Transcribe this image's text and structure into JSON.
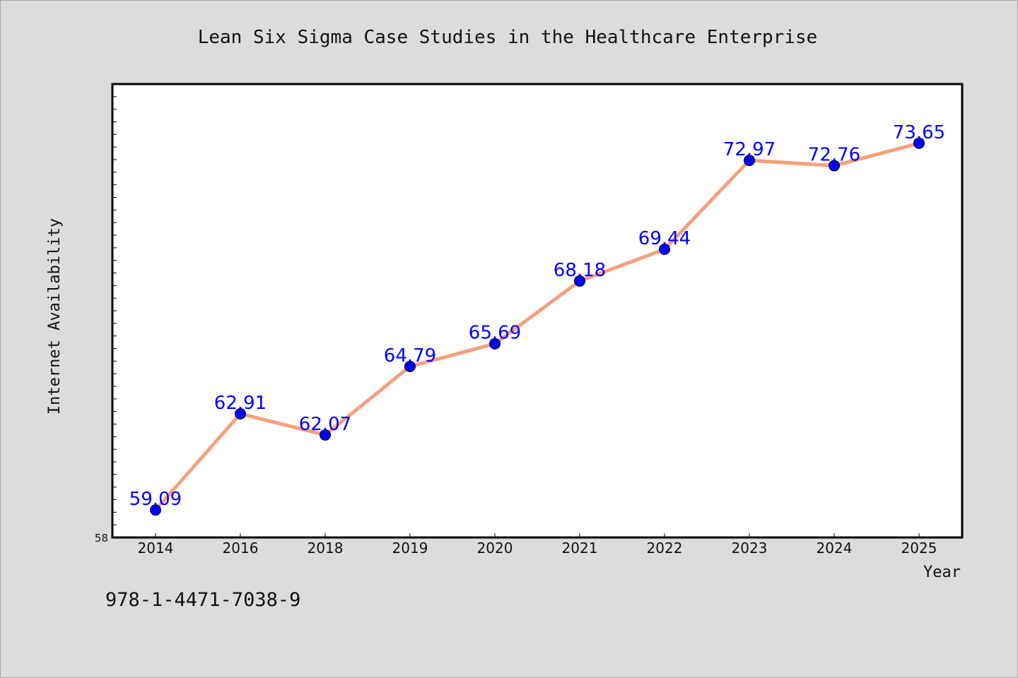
{
  "chart_data": {
    "type": "line",
    "title": "Lean Six Sigma Case Studies in the Healthcare Enterprise",
    "xlabel": "Year",
    "ylabel": "Internet Availability",
    "categories": [
      "2014",
      "2016",
      "2018",
      "2019",
      "2020",
      "2021",
      "2022",
      "2023",
      "2024",
      "2025"
    ],
    "values": [
      59.09,
      62.91,
      62.07,
      64.79,
      65.69,
      68.18,
      69.44,
      72.97,
      72.76,
      73.65
    ],
    "data_labels": [
      "59.09",
      "62.91",
      "62.07",
      "64.79",
      "65.69",
      "68.18",
      "69.44",
      "72.97",
      "72.76",
      "73.65"
    ],
    "ylim": [
      58,
      76
    ],
    "y_tick_labels": [
      "58"
    ],
    "grid": false,
    "legend": "none",
    "colors": {
      "line": "#f4a07e",
      "marker": "#0000ff",
      "data_label": "#0000ff",
      "plot_background": "#ffffff",
      "page_background": "#dcdcdc"
    }
  },
  "footer": {
    "isbn": "978-1-4471-7038-9"
  }
}
